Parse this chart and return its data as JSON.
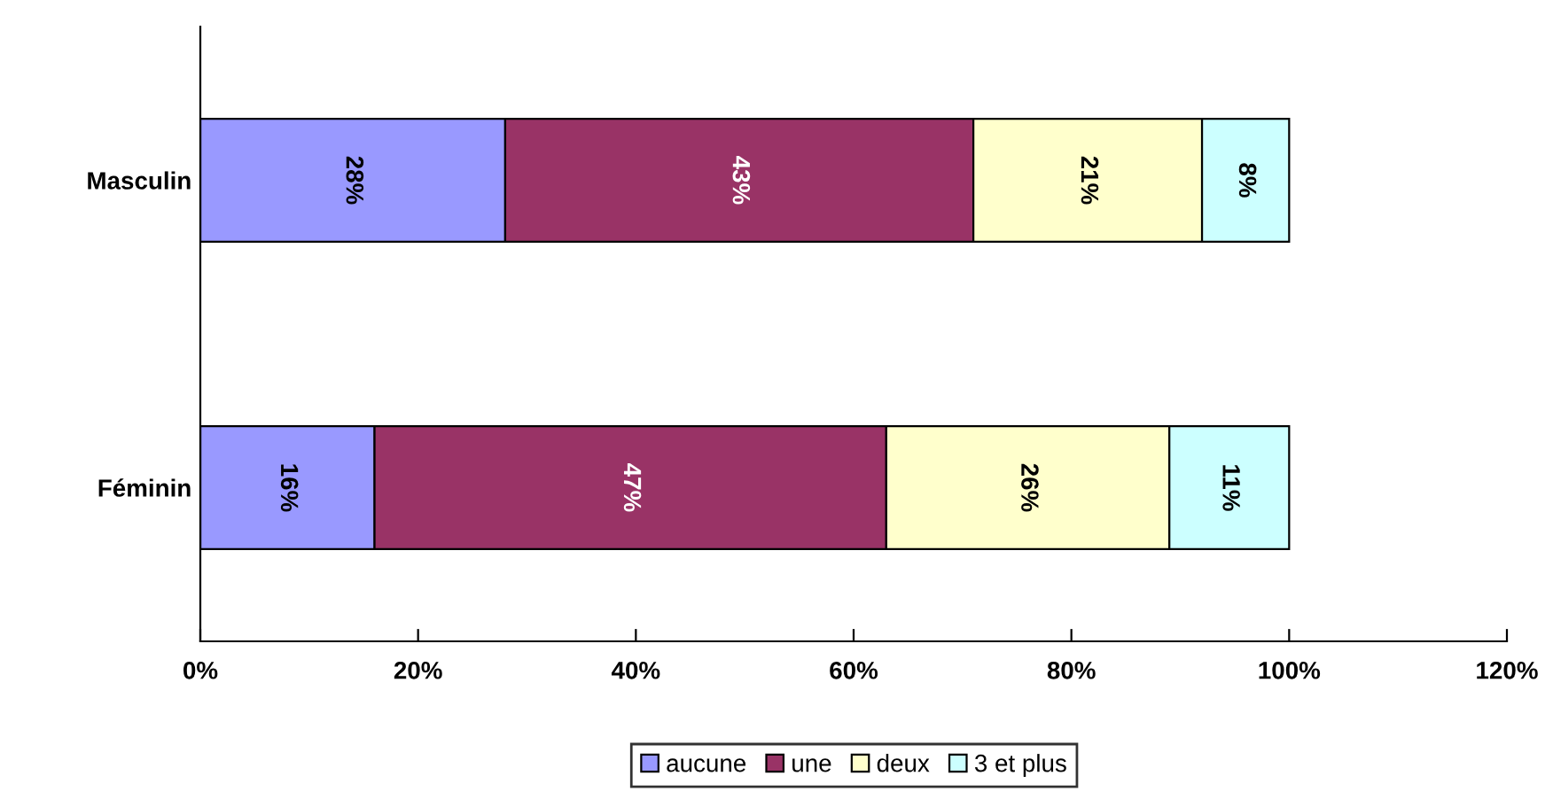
{
  "chart_data": {
    "type": "bar",
    "orientation": "horizontal",
    "stacked": true,
    "categories": [
      "Masculin",
      "Féminin"
    ],
    "series": [
      {
        "name": "aucune",
        "color": "#9999ff",
        "values": [
          28,
          16
        ],
        "value_labels": [
          "28%",
          "16%"
        ]
      },
      {
        "name": "une",
        "color": "#993366",
        "values": [
          43,
          47
        ],
        "value_labels": [
          "43%",
          "47%"
        ]
      },
      {
        "name": "deux",
        "color": "#ffffcc",
        "values": [
          21,
          26
        ],
        "value_labels": [
          "21%",
          "26%"
        ]
      },
      {
        "name": "3 et plus",
        "color": "#ccffff",
        "values": [
          8,
          11
        ],
        "value_labels": [
          "8%",
          "11%"
        ]
      }
    ],
    "xlim": [
      0,
      120
    ],
    "xticks": [
      {
        "value": 0,
        "label": "0%"
      },
      {
        "value": 20,
        "label": "20%"
      },
      {
        "value": 40,
        "label": "40%"
      },
      {
        "value": 60,
        "label": "60%"
      },
      {
        "value": 80,
        "label": "80%"
      },
      {
        "value": 100,
        "label": "100%"
      },
      {
        "value": 120,
        "label": "120%"
      }
    ],
    "grid": false,
    "legend": "bottom"
  }
}
